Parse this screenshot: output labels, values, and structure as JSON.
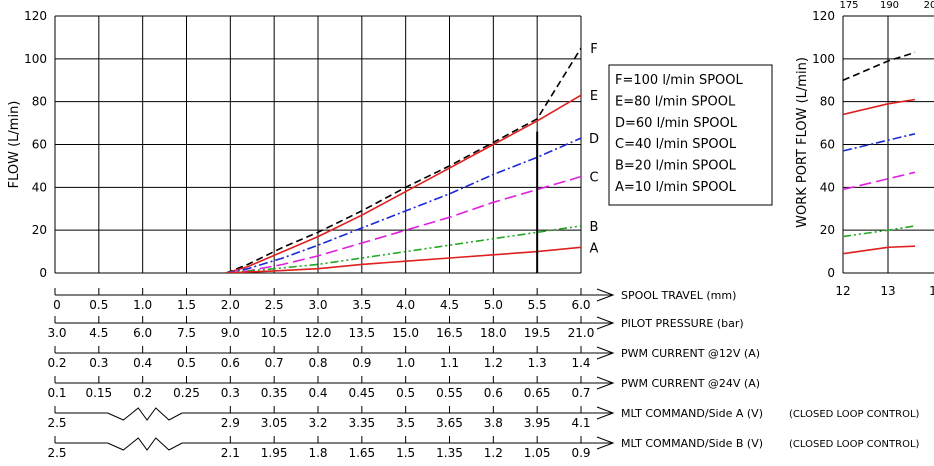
{
  "chart_data": [
    {
      "type": "line",
      "title": "",
      "ylabel": "FLOW (L/min)",
      "xlabel": "SPOOL TRAVEL (mm)",
      "x": [
        0,
        0.5,
        1.0,
        1.5,
        2.0,
        2.5,
        3.0,
        3.5,
        4.0,
        4.5,
        5.0,
        5.5,
        6.0
      ],
      "xlim": [
        0,
        6.0
      ],
      "ylim": [
        0,
        120
      ],
      "grid": true,
      "legend_position": "right",
      "series": [
        {
          "name": "F",
          "legend": "F=100 l/min SPOOL",
          "color": "#000000",
          "dash": "dashed",
          "points": [
            [
              1.95,
              0
            ],
            [
              2.2,
              4
            ],
            [
              2.6,
              12
            ],
            [
              3.0,
              19
            ],
            [
              3.5,
              29
            ],
            [
              4.0,
              40
            ],
            [
              4.5,
              50
            ],
            [
              5.0,
              61
            ],
            [
              5.5,
              72
            ],
            [
              6.0,
              105
            ]
          ]
        },
        {
          "name": "E",
          "legend": "E=80  l/min SPOOL",
          "color": "#e02020",
          "dash": "solid",
          "points": [
            [
              1.95,
              0
            ],
            [
              2.2,
              3
            ],
            [
              2.6,
              10
            ],
            [
              3.0,
              17
            ],
            [
              3.5,
              27
            ],
            [
              4.0,
              38
            ],
            [
              4.5,
              49
            ],
            [
              5.0,
              60
            ],
            [
              5.5,
              71
            ],
            [
              6.0,
              83
            ]
          ]
        },
        {
          "name": "D",
          "legend": "D=60  l/min SPOOL",
          "color": "#1a2ad8",
          "dash": "dashdot",
          "points": [
            [
              1.95,
              0
            ],
            [
              2.2,
              2
            ],
            [
              2.6,
              7
            ],
            [
              3.0,
              13
            ],
            [
              3.5,
              21
            ],
            [
              4.0,
              29
            ],
            [
              4.5,
              37
            ],
            [
              5.0,
              46
            ],
            [
              5.5,
              54
            ],
            [
              6.0,
              63
            ]
          ]
        },
        {
          "name": "C",
          "legend": "C=40  l/min SPOOL",
          "color": "#e020e0",
          "dash": "longdash",
          "points": [
            [
              1.95,
              0
            ],
            [
              2.2,
              1
            ],
            [
              2.6,
              4
            ],
            [
              3.0,
              8
            ],
            [
              3.5,
              14
            ],
            [
              4.0,
              20
            ],
            [
              4.5,
              26
            ],
            [
              5.0,
              33
            ],
            [
              5.5,
              39
            ],
            [
              6.0,
              45
            ]
          ]
        },
        {
          "name": "B",
          "legend": "B=20  l/min SPOOL",
          "color": "#22a822",
          "dash": "dashdotdot",
          "points": [
            [
              1.95,
              0
            ],
            [
              2.5,
              2
            ],
            [
              3.0,
              4
            ],
            [
              3.5,
              7
            ],
            [
              4.0,
              10
            ],
            [
              4.5,
              13
            ],
            [
              5.0,
              16
            ],
            [
              5.5,
              19
            ],
            [
              6.0,
              22
            ]
          ]
        },
        {
          "name": "A",
          "legend": "A=10  l/min SPOOL",
          "color": "#e02020",
          "dash": "solid",
          "points": [
            [
              1.95,
              0
            ],
            [
              2.5,
              1
            ],
            [
              3.0,
              2
            ],
            [
              3.5,
              4
            ],
            [
              4.0,
              5.5
            ],
            [
              4.5,
              7
            ],
            [
              5.0,
              8.5
            ],
            [
              5.5,
              10
            ],
            [
              6.0,
              12
            ]
          ]
        }
      ],
      "marker_line": {
        "x": 5.5,
        "y": 66
      },
      "x_axes": [
        {
          "label": "SPOOL TRAVEL (mm)",
          "note": "",
          "ticks": [
            "0",
            "0.5",
            "1.0",
            "1.5",
            "2.0",
            "2.5",
            "3.0",
            "3.5",
            "4.0",
            "4.5",
            "5.0",
            "5.5",
            "6.0"
          ],
          "break": false
        },
        {
          "label": "PILOT PRESSURE (bar)",
          "note": "",
          "ticks": [
            "3.0",
            "4.5",
            "6.0",
            "7.5",
            "9.0",
            "10.5",
            "12.0",
            "13.5",
            "15.0",
            "16.5",
            "18.0",
            "19.5",
            "21.0"
          ],
          "break": false
        },
        {
          "label": "PWM CURRENT @12V (A)",
          "note": "",
          "ticks": [
            "0.2",
            "0.3",
            "0.4",
            "0.5",
            "0.6",
            "0.7",
            "0.8",
            "0.9",
            "1.0",
            "1.1",
            "1.2",
            "1.3",
            "1.4"
          ],
          "break": false
        },
        {
          "label": "PWM CURRENT @24V (A)",
          "note": "",
          "ticks": [
            "0.1",
            "0.15",
            "0.2",
            "0.25",
            "0.3",
            "0.35",
            "0.4",
            "0.45",
            "0.5",
            "0.55",
            "0.6",
            "0.65",
            "0.7"
          ],
          "break": false
        },
        {
          "label": "MLT COMMAND/Side A (V)",
          "note": "(CLOSED LOOP CONTROL)",
          "ticks": [
            "2.5",
            "",
            "",
            "",
            "2.9",
            "3.05",
            "3.2",
            "3.35",
            "3.5",
            "3.65",
            "3.8",
            "3.95",
            "4.1"
          ],
          "break": true
        },
        {
          "label": "MLT COMMAND/Side B (V)",
          "note": "(CLOSED LOOP CONTROL)",
          "ticks": [
            "2.5",
            "",
            "",
            "",
            "2.1",
            "1.95",
            "1.8",
            "1.65",
            "1.5",
            "1.35",
            "1.2",
            "1.05",
            "0.9"
          ],
          "break": true
        }
      ]
    },
    {
      "type": "line",
      "title": "",
      "ylabel": "WORK PORT FLOW (L/min)",
      "xlabel": "",
      "x_ticks": [
        "12",
        "13",
        "1"
      ],
      "top_ticks": [
        "175",
        "190",
        "20"
      ],
      "xlim": [
        12,
        14
      ],
      "ylim": [
        0,
        120
      ],
      "grid": true,
      "series": [
        {
          "name": "",
          "color": "#000000",
          "dash": "dashed",
          "points": [
            [
              12,
              90
            ],
            [
              13,
              99
            ],
            [
              13.6,
              103
            ]
          ]
        },
        {
          "name": "",
          "color": "#e02020",
          "dash": "solid",
          "points": [
            [
              12,
              74
            ],
            [
              13,
              79
            ],
            [
              13.6,
              81
            ]
          ]
        },
        {
          "name": "",
          "color": "#1a2ad8",
          "dash": "dashdot",
          "points": [
            [
              12,
              57
            ],
            [
              13,
              62
            ],
            [
              13.6,
              65
            ]
          ]
        },
        {
          "name": "",
          "color": "#e020e0",
          "dash": "longdash",
          "points": [
            [
              12,
              39
            ],
            [
              13,
              44
            ],
            [
              13.6,
              47
            ]
          ]
        },
        {
          "name": "",
          "color": "#22a822",
          "dash": "dashdotdot",
          "points": [
            [
              12,
              17
            ],
            [
              13,
              20
            ],
            [
              13.6,
              22
            ]
          ]
        },
        {
          "name": "",
          "color": "#e02020",
          "dash": "solid",
          "points": [
            [
              12,
              9
            ],
            [
              13,
              12
            ],
            [
              13.6,
              12.5
            ]
          ]
        }
      ]
    }
  ]
}
